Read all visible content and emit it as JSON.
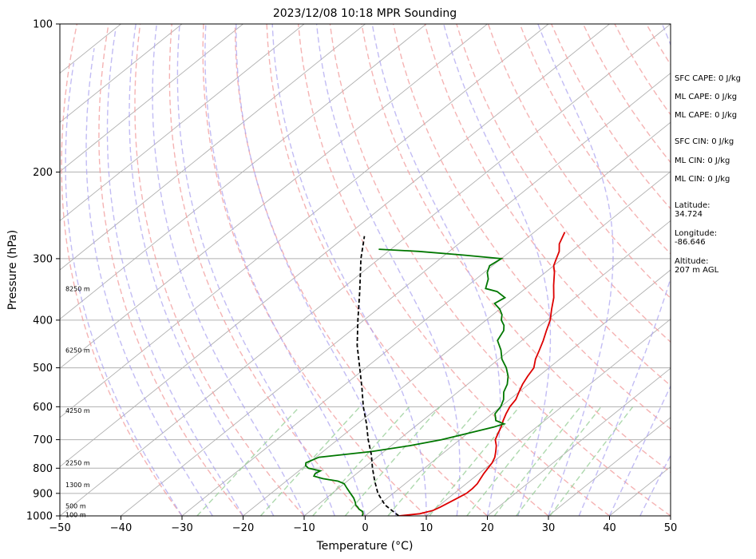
{
  "chart_data": {
    "type": "line",
    "title": "2023/12/08 10:18 MPR Sounding",
    "xlabel": "Temperature (°C)",
    "ylabel": "Pressure (hPa)",
    "xlim": [
      -50,
      50
    ],
    "ylim": [
      1000,
      100
    ],
    "yscale": "log",
    "x_ticks": [
      "−50",
      "−40",
      "−30",
      "−20",
      "−10",
      "0",
      "10",
      "20",
      "30",
      "40",
      "50"
    ],
    "y_ticks": [
      {
        "p": 1000,
        "label": "1000"
      },
      {
        "p": 900,
        "label": "900"
      },
      {
        "p": 800,
        "label": "800"
      },
      {
        "p": 700,
        "label": "700"
      },
      {
        "p": 600,
        "label": "600"
      },
      {
        "p": 500,
        "label": "500"
      },
      {
        "p": 400,
        "label": "400"
      },
      {
        "p": 300,
        "label": "300"
      },
      {
        "p": 200,
        "label": "200"
      },
      {
        "p": 100,
        "label": "100"
      }
    ],
    "height_labels": [
      {
        "p": 995,
        "label": "100 m"
      },
      {
        "p": 955,
        "label": "500 m"
      },
      {
        "p": 865,
        "label": "1300 m"
      },
      {
        "p": 780,
        "label": "2250 m"
      },
      {
        "p": 610,
        "label": "4250 m"
      },
      {
        "p": 460,
        "label": "6250 m"
      },
      {
        "p": 345,
        "label": "8250 m"
      }
    ],
    "series": [
      {
        "color": "#dd0000",
        "points": [
          [
            1000,
            5.5
          ],
          [
            990,
            8.5
          ],
          [
            975,
            10
          ],
          [
            960,
            10.5
          ],
          [
            940,
            11
          ],
          [
            920,
            11.5
          ],
          [
            900,
            12
          ],
          [
            880,
            12
          ],
          [
            860,
            11.8
          ],
          [
            840,
            11.3
          ],
          [
            820,
            10.8
          ],
          [
            800,
            10.4
          ],
          [
            780,
            10
          ],
          [
            760,
            9.3
          ],
          [
            740,
            8.3
          ],
          [
            720,
            7.2
          ],
          [
            700,
            5.8
          ],
          [
            680,
            5
          ],
          [
            660,
            4.2
          ],
          [
            640,
            3.2
          ],
          [
            620,
            2.3
          ],
          [
            600,
            1.5
          ],
          [
            580,
            1
          ],
          [
            560,
            0
          ],
          [
            540,
            -1
          ],
          [
            520,
            -1.8
          ],
          [
            500,
            -2.5
          ],
          [
            480,
            -4
          ],
          [
            460,
            -5.2
          ],
          [
            440,
            -6.5
          ],
          [
            420,
            -8
          ],
          [
            400,
            -9.5
          ],
          [
            380,
            -11.5
          ],
          [
            360,
            -13.5
          ],
          [
            340,
            -16
          ],
          [
            320,
            -18.5
          ],
          [
            310,
            -20
          ],
          [
            300,
            -21
          ],
          [
            290,
            -22
          ],
          [
            280,
            -23.5
          ],
          [
            270,
            -24.5
          ],
          [
            265,
            -25
          ]
        ]
      },
      {
        "color": "#007700",
        "points": [
          [
            1000,
            -0.5
          ],
          [
            990,
            -0.8
          ],
          [
            980,
            -1.3
          ],
          [
            970,
            -2.3
          ],
          [
            960,
            -3
          ],
          [
            950,
            -3.8
          ],
          [
            940,
            -4.3
          ],
          [
            920,
            -5.5
          ],
          [
            900,
            -7
          ],
          [
            880,
            -8.5
          ],
          [
            860,
            -10
          ],
          [
            850,
            -11.5
          ],
          [
            840,
            -14.5
          ],
          [
            830,
            -16.5
          ],
          [
            820,
            -16.8
          ],
          [
            810,
            -16.5
          ],
          [
            800,
            -19
          ],
          [
            790,
            -20
          ],
          [
            780,
            -20.5
          ],
          [
            770,
            -20
          ],
          [
            760,
            -19.5
          ],
          [
            740,
            -12
          ],
          [
            720,
            -7
          ],
          [
            700,
            -3
          ],
          [
            680,
            0
          ],
          [
            660,
            3
          ],
          [
            650,
            4
          ],
          [
            640,
            2
          ],
          [
            620,
            0.5
          ],
          [
            600,
            0
          ],
          [
            580,
            -1
          ],
          [
            560,
            -2.5
          ],
          [
            540,
            -3.5
          ],
          [
            520,
            -5
          ],
          [
            500,
            -7
          ],
          [
            480,
            -9.5
          ],
          [
            460,
            -11.5
          ],
          [
            440,
            -14
          ],
          [
            420,
            -15
          ],
          [
            410,
            -16
          ],
          [
            400,
            -17.5
          ],
          [
            390,
            -18.5
          ],
          [
            380,
            -20
          ],
          [
            370,
            -22
          ],
          [
            360,
            -21.5
          ],
          [
            350,
            -24
          ],
          [
            345,
            -26.5
          ],
          [
            330,
            -28
          ],
          [
            320,
            -29.5
          ],
          [
            310,
            -30.5
          ],
          [
            300,
            -30
          ],
          [
            295,
            -37
          ],
          [
            290,
            -45
          ],
          [
            287,
            -52
          ]
        ]
      },
      {
        "color": "#000000",
        "dash": true,
        "points": [
          [
            1000,
            5.5
          ],
          [
            950,
            1
          ],
          [
            900,
            -2.5
          ],
          [
            850,
            -5.5
          ],
          [
            800,
            -8.5
          ],
          [
            750,
            -11.5
          ],
          [
            700,
            -15
          ],
          [
            650,
            -18.5
          ],
          [
            600,
            -22.5
          ],
          [
            550,
            -26.5
          ],
          [
            500,
            -31
          ],
          [
            450,
            -36
          ],
          [
            400,
            -41
          ],
          [
            350,
            -46.5
          ],
          [
            300,
            -53
          ],
          [
            270,
            -57
          ]
        ]
      }
    ]
  },
  "panel": {
    "sfc_cape": "SFC CAPE: 0 J/kg",
    "ml_cape_1": "ML CAPE: 0 J/kg",
    "ml_cape_2": "ML CAPE: 0 J/kg",
    "sfc_cin": "SFC CIN: 0 J/kg",
    "ml_cin_1": "ML CIN: 0 J/kg",
    "ml_cin_2": "ML CIN: 0 J/kg",
    "latitude_label": "Latitude:",
    "latitude_value": "34.724",
    "longitude_label": "Longitude:",
    "longitude_value": "-86.646",
    "altitude_label": "Altitude:",
    "altitude_value": "207 m AGL"
  }
}
